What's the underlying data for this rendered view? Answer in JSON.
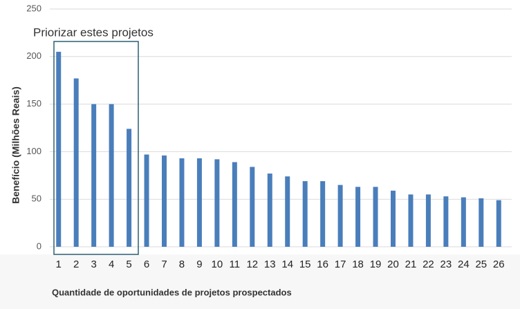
{
  "chart_data": {
    "type": "bar",
    "annotation": "Priorizar estes projetos",
    "x_label": "Quantidade de oportunidades de projetos prospectados",
    "y_label": "Benefício (Milhões Reais)",
    "categories": [
      "1",
      "2",
      "3",
      "4",
      "5",
      "6",
      "7",
      "8",
      "9",
      "10",
      "11",
      "12",
      "13",
      "14",
      "15",
      "16",
      "17",
      "18",
      "19",
      "20",
      "21",
      "22",
      "23",
      "24",
      "25",
      "26"
    ],
    "values": [
      205,
      177,
      150,
      150,
      124,
      97,
      96,
      93,
      93,
      92,
      89,
      84,
      77,
      74,
      69,
      69,
      65,
      63,
      63,
      59,
      55,
      55,
      53,
      52,
      51,
      49
    ],
    "color": "#4a7ebb",
    "ylim": [
      0,
      250
    ],
    "yticks": [
      0,
      50,
      100,
      150,
      200,
      250
    ],
    "grid": true
  }
}
